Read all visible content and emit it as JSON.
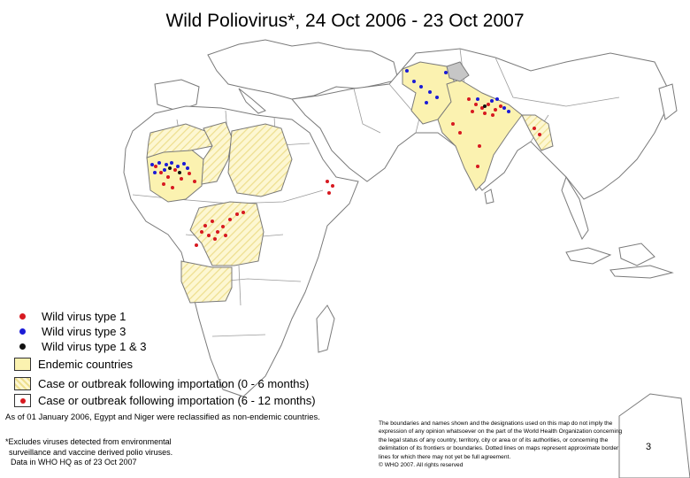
{
  "title": "Wild Poliovirus*, 24 Oct 2006 - 23 Oct 2007",
  "colors": {
    "type1": "#d71920",
    "type3": "#1b1bd6",
    "type1_3": "#111111",
    "endemic_fill": "#fbf2b0",
    "importation_hatch": "#f1e39a",
    "land_border": "#7a7a7a",
    "disputed": "#c6c6c6"
  },
  "legend": {
    "virus_types": [
      {
        "label": "Wild virus type 1",
        "color": "#d71920"
      },
      {
        "label": "Wild virus type 3",
        "color": "#1b1bd6"
      },
      {
        "label": "Wild virus type 1 & 3",
        "color": "#111111"
      }
    ],
    "statuses": [
      {
        "label": "Endemic countries",
        "style": "solid-yellow"
      },
      {
        "label": "Case or outbreak following importation (0 - 6 months)",
        "style": "hatched-yellow"
      },
      {
        "label": "Case or outbreak following importation (6 - 12 months)",
        "style": "white-with-red-dot"
      }
    ]
  },
  "notes": {
    "reclassified": "As of 01 January 2006, Egypt and Niger were reclassified as non-endemic countries.",
    "footnote_1": "*Excludes viruses detected from environmental",
    "footnote_2": "surveillance and vaccine derived polio viruses.",
    "footnote_3": "Data in WHO HQ as of 23 Oct 2007"
  },
  "disclaimer": {
    "line_1": "The boundaries and names shown and the designations used on this map do not imply the",
    "line_2": "expression of any opinion whatsoever on the part of the World Health Organization concerning",
    "line_3": "the legal status of any country, territory, city or area or of its authorities, or concerning the",
    "line_4": "delimitation of its frontiers or boundaries. Dotted lines on maps represent approximate border",
    "line_5": "lines for which there may not yet be full agreement.",
    "line_6": "© WHO 2007. All rights reserved"
  },
  "page_number": "3"
}
